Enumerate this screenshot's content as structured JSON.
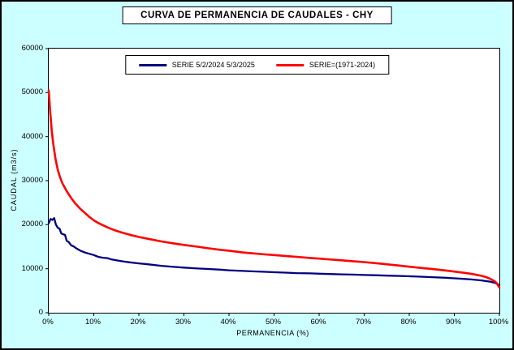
{
  "chart_data": {
    "type": "line",
    "title": "CURVA DE PERMANENCIA DE CAUDALES - CHY",
    "xlabel": "PERMANENCIA (%)",
    "ylabel": "CAUDAL (m3/s)",
    "xlim": [
      0,
      100
    ],
    "ylim": [
      0,
      60000
    ],
    "grid": false,
    "legend_position": "top-center",
    "x_ticks": [
      "0%",
      "10%",
      "20%",
      "30%",
      "40%",
      "50%",
      "60%",
      "70%",
      "80%",
      "90%",
      "100%"
    ],
    "y_ticks": [
      "0",
      "10000",
      "20000",
      "30000",
      "40000",
      "50000",
      "60000"
    ],
    "background_color": "#CCFFFF",
    "plot_background_color": "#FFFFFF",
    "series": [
      {
        "name": "SERIE 5/2/2024 5/3/2025",
        "color": "#000080",
        "width": 2.3,
        "points": [
          [
            0,
            20300
          ],
          [
            0.4,
            21300
          ],
          [
            0.8,
            21100
          ],
          [
            1.2,
            21500
          ],
          [
            1.6,
            20000
          ],
          [
            2,
            19300
          ],
          [
            2.4,
            19100
          ],
          [
            2.8,
            18000
          ],
          [
            3.2,
            17800
          ],
          [
            3.6,
            17700
          ],
          [
            4,
            16300
          ],
          [
            4.4,
            16100
          ],
          [
            5,
            15300
          ],
          [
            5.5,
            15100
          ],
          [
            6,
            14700
          ],
          [
            7,
            14100
          ],
          [
            8,
            13700
          ],
          [
            9,
            13400
          ],
          [
            10,
            13100
          ],
          [
            11,
            12700
          ],
          [
            12,
            12500
          ],
          [
            13,
            12400
          ],
          [
            14,
            12100
          ],
          [
            15,
            11900
          ],
          [
            16,
            11750
          ],
          [
            18,
            11450
          ],
          [
            20,
            11200
          ],
          [
            22,
            11000
          ],
          [
            25,
            10650
          ],
          [
            28,
            10400
          ],
          [
            30,
            10250
          ],
          [
            33,
            10050
          ],
          [
            35,
            9950
          ],
          [
            38,
            9800
          ],
          [
            40,
            9650
          ],
          [
            43,
            9500
          ],
          [
            45,
            9400
          ],
          [
            48,
            9300
          ],
          [
            50,
            9200
          ],
          [
            53,
            9100
          ],
          [
            55,
            9000
          ],
          [
            58,
            8950
          ],
          [
            60,
            8870
          ],
          [
            63,
            8780
          ],
          [
            65,
            8720
          ],
          [
            68,
            8650
          ],
          [
            70,
            8580
          ],
          [
            73,
            8500
          ],
          [
            75,
            8430
          ],
          [
            78,
            8360
          ],
          [
            80,
            8280
          ],
          [
            83,
            8170
          ],
          [
            85,
            8080
          ],
          [
            88,
            7950
          ],
          [
            90,
            7830
          ],
          [
            92,
            7700
          ],
          [
            94,
            7550
          ],
          [
            96,
            7350
          ],
          [
            98,
            7050
          ],
          [
            99,
            6800
          ],
          [
            100,
            6300
          ]
        ]
      },
      {
        "name": "SERIE=(1971-2024)",
        "color": "#FF0000",
        "width": 2.6,
        "points": [
          [
            0,
            50500
          ],
          [
            0.3,
            46000
          ],
          [
            0.7,
            41000
          ],
          [
            1,
            38500
          ],
          [
            1.5,
            35000
          ],
          [
            2,
            32500
          ],
          [
            2.5,
            30800
          ],
          [
            3,
            29500
          ],
          [
            4,
            27600
          ],
          [
            5,
            26000
          ],
          [
            6,
            24700
          ],
          [
            7,
            23600
          ],
          [
            8,
            22700
          ],
          [
            9,
            21800
          ],
          [
            10,
            21000
          ],
          [
            11,
            20400
          ],
          [
            12,
            19900
          ],
          [
            13,
            19400
          ],
          [
            14,
            19000
          ],
          [
            15,
            18600
          ],
          [
            16,
            18300
          ],
          [
            18,
            17700
          ],
          [
            20,
            17200
          ],
          [
            22,
            16800
          ],
          [
            25,
            16200
          ],
          [
            28,
            15700
          ],
          [
            30,
            15400
          ],
          [
            33,
            15000
          ],
          [
            35,
            14700
          ],
          [
            38,
            14300
          ],
          [
            40,
            14100
          ],
          [
            43,
            13700
          ],
          [
            45,
            13500
          ],
          [
            48,
            13250
          ],
          [
            50,
            13100
          ],
          [
            53,
            12850
          ],
          [
            55,
            12700
          ],
          [
            58,
            12450
          ],
          [
            60,
            12300
          ],
          [
            63,
            12050
          ],
          [
            65,
            11900
          ],
          [
            68,
            11650
          ],
          [
            70,
            11500
          ],
          [
            73,
            11200
          ],
          [
            75,
            11000
          ],
          [
            78,
            10700
          ],
          [
            80,
            10450
          ],
          [
            83,
            10150
          ],
          [
            85,
            9950
          ],
          [
            88,
            9600
          ],
          [
            90,
            9350
          ],
          [
            92,
            9100
          ],
          [
            94,
            8800
          ],
          [
            95,
            8600
          ],
          [
            96,
            8400
          ],
          [
            97,
            8100
          ],
          [
            98,
            7700
          ],
          [
            99,
            7100
          ],
          [
            99.5,
            6600
          ],
          [
            100,
            5700
          ]
        ]
      }
    ]
  }
}
